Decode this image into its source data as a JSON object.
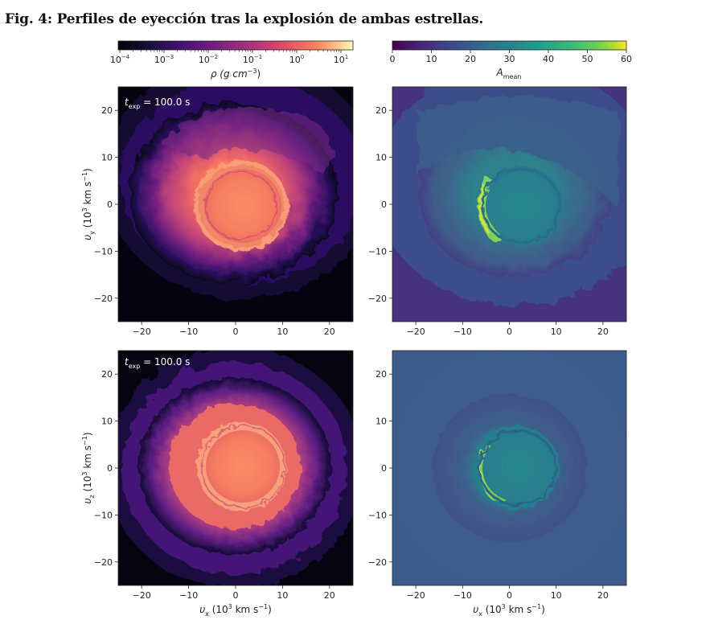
{
  "figure": {
    "title": "Fig. 4: Perfiles de eyección tras la explosión de ambas estrellas."
  },
  "colorbars": {
    "density": {
      "label_main": "ρ (g cm",
      "label_exp": "−3",
      "label_close": ")",
      "ticks": [
        {
          "base": "10",
          "exp": "−4"
        },
        {
          "base": "10",
          "exp": "−3"
        },
        {
          "base": "10",
          "exp": "−2"
        },
        {
          "base": "10",
          "exp": "−1"
        },
        {
          "base": "10",
          "exp": "0"
        },
        {
          "base": "10",
          "exp": "1"
        }
      ],
      "colormap": "magma"
    },
    "amean": {
      "label_main": "A",
      "label_sub": "mean",
      "ticks": [
        "0",
        "10",
        "20",
        "30",
        "40",
        "50",
        "60"
      ],
      "colormap": "viridis"
    }
  },
  "panels": {
    "annotation": {
      "t": "t",
      "sub": "exp",
      "value": " = 100.0 s"
    },
    "axis_ticks": [
      "−20",
      "−10",
      "0",
      "10",
      "20"
    ],
    "ylabel_top": {
      "v": "υ",
      "sub": "y",
      "rest": " (10",
      "exp": "3",
      "rest2": " km s",
      "exp2": "−1",
      "close": ")"
    },
    "ylabel_bottom": {
      "v": "υ",
      "sub": "z",
      "rest": " (10",
      "exp": "3",
      "rest2": " km s",
      "exp2": "−1",
      "close": ")"
    },
    "xlabel": {
      "v": "υ",
      "sub": "x",
      "rest": " (10",
      "exp": "3",
      "rest2": " km s",
      "exp2": "−1",
      "close": ")"
    }
  },
  "colors": {
    "background": "#ffffff",
    "magma_dark": "#0d0829",
    "magma_purple": "#5a1a7c",
    "magma_pink": "#c83f78",
    "magma_orange": "#f8775e",
    "magma_light": "#fcf6b8",
    "viridis_dark": "#440154",
    "viridis_blue": "#3b5a8c",
    "viridis_teal": "#21908d",
    "viridis_green": "#5ec962",
    "viridis_yellow": "#fde725"
  }
}
